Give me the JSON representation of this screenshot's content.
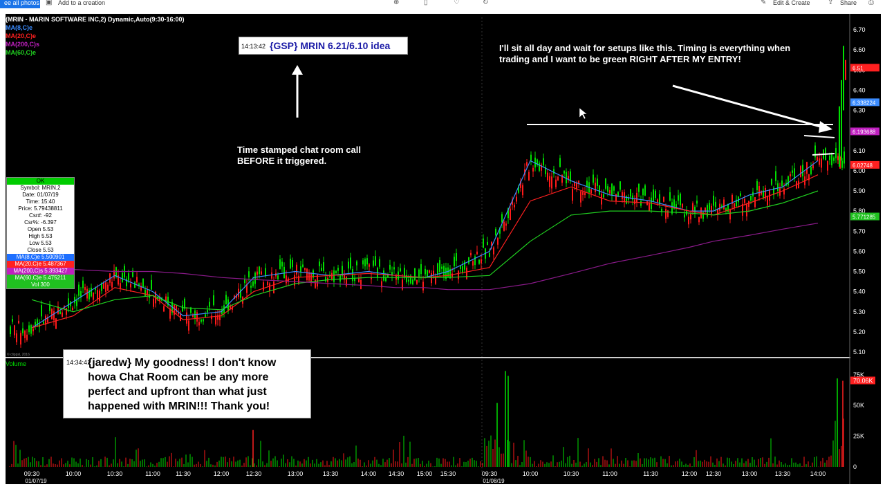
{
  "topbar": {
    "all_photos": "ee all photos",
    "add_to_creation": "Add to a creation",
    "edit_create": "Edit & Create",
    "share": "Share"
  },
  "chart_header": {
    "title": "(MRIN - MARIN SOFTWARE INC,2) Dynamic,Auto(9:30-16:00)",
    "ma8": "MA(8,C)e",
    "ma20": "MA(20,C)e",
    "ma200": "MA(200,C)s",
    "ma60": "MA(60,C)e",
    "ma8_color": "#3b8cff",
    "ma20_color": "#ff2020",
    "ma200_color": "#c020c0",
    "ma60_color": "#20d020"
  },
  "info_box": {
    "ok": "OK",
    "symbol": "Symbol: MRIN,2",
    "date": "Date: 01/07/19",
    "time": "Time: 15:40",
    "price": "Price: 5.79438811",
    "csr": "Csr#: -92",
    "csr_pct": "Csr%: -6.397",
    "open": "Open  5.53",
    "high": "High  5.53",
    "low": "Low  5.53",
    "close": "Close  5.53",
    "ma8": "MA(8,C)e 5.500901",
    "ma20": "MA(20,C)e 5.487367",
    "ma200": "MA(200,C)s 5.393427",
    "ma60": "MA(60,C)e 5.475211",
    "vol": "Vol 300"
  },
  "callouts": {
    "gsp_time": "14:13:42",
    "gsp_text": "{GSP} MRIN 6.21/6.10 idea",
    "time_note_l1": "Time stamped chat room call",
    "time_note_l2": "BEFORE it triggered.",
    "right_note_l1": "I'll sit all day and wait for setups like this. Timing is everything when",
    "right_note_l2": "trading and I want to be green RIGHT AFTER MY ENTRY!",
    "jared_time": "14:34:41",
    "jared_l1": "{jaredw} My goodness! I don't know",
    "jared_l2": "howa Chat Room can be any more",
    "jared_l3": "perfect and upfront than what just",
    "jared_l4": "happened with MRIN!!!  Thank you!"
  },
  "volume_label": "Volume",
  "copyright": "© clippsl, 2016",
  "price_axis": [
    "6.70",
    "6.60",
    "6.50",
    "6.40",
    "6.30",
    "6.20",
    "6.10",
    "6.00",
    "5.90",
    "5.80",
    "5.70",
    "5.60",
    "5.50",
    "5.40",
    "5.30",
    "5.20",
    "5.10"
  ],
  "price_tags": [
    "6.51",
    "6.338224",
    "6.193688",
    "6.02748",
    "5.771285"
  ],
  "volume_axis": [
    "75K",
    "70.06K",
    "50K",
    "25K",
    "0"
  ],
  "time_axis": [
    "09:30",
    "10:00",
    "10:30",
    "11:00",
    "11:30",
    "12:00",
    "12:30",
    "13:00",
    "13:30",
    "14:00",
    "14:30",
    "15:00",
    "15:30",
    "09:30",
    "10:00",
    "10:30",
    "11:00",
    "11:30",
    "12:00",
    "12:30",
    "13:00",
    "13:30",
    "14:00"
  ],
  "date_axis": [
    "01/07/19",
    "01/08/19"
  ],
  "colors": {
    "up": "#00e000",
    "down": "#ff1a1a",
    "arrow": "#ffffff"
  },
  "chart_data": {
    "type": "line",
    "title": "(MRIN - MARIN SOFTWARE INC,2) Dynamic,Auto(9:30-16:00)",
    "xlabel": "",
    "ylabel": "",
    "ylim": [
      5.1,
      6.7
    ],
    "x": [
      "09:30",
      "10:00",
      "10:30",
      "11:00",
      "11:30",
      "12:00",
      "12:30",
      "13:00",
      "13:30",
      "14:00",
      "14:30",
      "15:00",
      "15:30",
      "09:30",
      "10:00",
      "10:30",
      "11:00",
      "11:30",
      "12:00",
      "12:30",
      "13:00",
      "13:30",
      "14:00"
    ],
    "series": [
      {
        "name": "MA(8,C)e",
        "values": [
          5.22,
          5.35,
          5.48,
          5.4,
          5.28,
          5.3,
          5.47,
          5.5,
          5.48,
          5.5,
          5.48,
          5.47,
          5.5,
          5.6,
          6.05,
          5.95,
          5.88,
          5.85,
          5.8,
          5.8,
          5.88,
          5.92,
          6.05
        ]
      },
      {
        "name": "MA(20,C)e",
        "values": [
          5.22,
          5.28,
          5.42,
          5.38,
          5.26,
          5.28,
          5.4,
          5.47,
          5.48,
          5.49,
          5.48,
          5.47,
          5.48,
          5.52,
          5.85,
          5.92,
          5.85,
          5.84,
          5.8,
          5.78,
          5.84,
          5.9,
          5.98
        ]
      },
      {
        "name": "MA(60,C)e",
        "values": [
          5.36,
          5.3,
          5.36,
          5.38,
          5.32,
          5.31,
          5.38,
          5.44,
          5.46,
          5.47,
          5.47,
          5.47,
          5.47,
          5.48,
          5.65,
          5.78,
          5.8,
          5.8,
          5.79,
          5.78,
          5.8,
          5.84,
          5.9
        ]
      },
      {
        "name": "MA(200,C)s",
        "values": [
          5.52,
          5.51,
          5.5,
          5.5,
          5.49,
          5.47,
          5.46,
          5.45,
          5.44,
          5.43,
          5.42,
          5.42,
          5.41,
          5.41,
          5.44,
          5.49,
          5.54,
          5.58,
          5.62,
          5.65,
          5.68,
          5.71,
          5.74
        ]
      }
    ],
    "grid": false,
    "legend": "top-left"
  }
}
